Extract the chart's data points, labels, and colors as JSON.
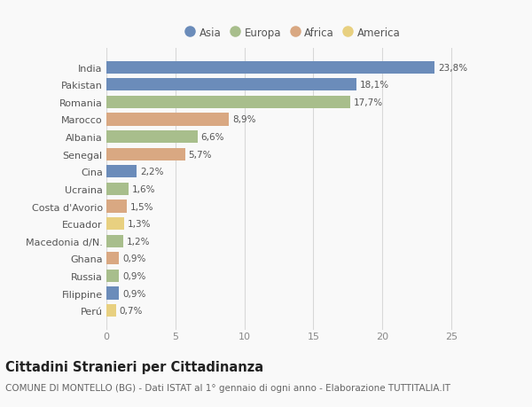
{
  "countries": [
    "India",
    "Pakistan",
    "Romania",
    "Marocco",
    "Albania",
    "Senegal",
    "Cina",
    "Ucraina",
    "Costa d'Avorio",
    "Ecuador",
    "Macedonia d/N.",
    "Ghana",
    "Russia",
    "Filippine",
    "Perú"
  ],
  "values": [
    23.8,
    18.1,
    17.7,
    8.9,
    6.6,
    5.7,
    2.2,
    1.6,
    1.5,
    1.3,
    1.2,
    0.9,
    0.9,
    0.9,
    0.7
  ],
  "labels": [
    "23,8%",
    "18,1%",
    "17,7%",
    "8,9%",
    "6,6%",
    "5,7%",
    "2,2%",
    "1,6%",
    "1,5%",
    "1,3%",
    "1,2%",
    "0,9%",
    "0,9%",
    "0,9%",
    "0,7%"
  ],
  "continents": [
    "Asia",
    "Asia",
    "Europa",
    "Africa",
    "Europa",
    "Africa",
    "Asia",
    "Europa",
    "Africa",
    "America",
    "Europa",
    "Africa",
    "Europa",
    "Asia",
    "America"
  ],
  "continent_colors": {
    "Asia": "#6b8cba",
    "Europa": "#a8be8c",
    "Africa": "#d9a882",
    "America": "#e8d080"
  },
  "legend_order": [
    "Asia",
    "Europa",
    "Africa",
    "America"
  ],
  "title": "Cittadini Stranieri per Cittadinanza",
  "subtitle": "COMUNE DI MONTELLO (BG) - Dati ISTAT al 1° gennaio di ogni anno - Elaborazione TUTTITALIA.IT",
  "xlim": [
    0,
    27
  ],
  "xticks": [
    0,
    5,
    10,
    15,
    20,
    25
  ],
  "bg_color": "#f9f9f9",
  "grid_color": "#d8d8d8",
  "bar_height": 0.72,
  "title_fontsize": 10.5,
  "subtitle_fontsize": 7.5,
  "tick_fontsize": 8,
  "label_fontsize": 7.5,
  "legend_fontsize": 8.5
}
